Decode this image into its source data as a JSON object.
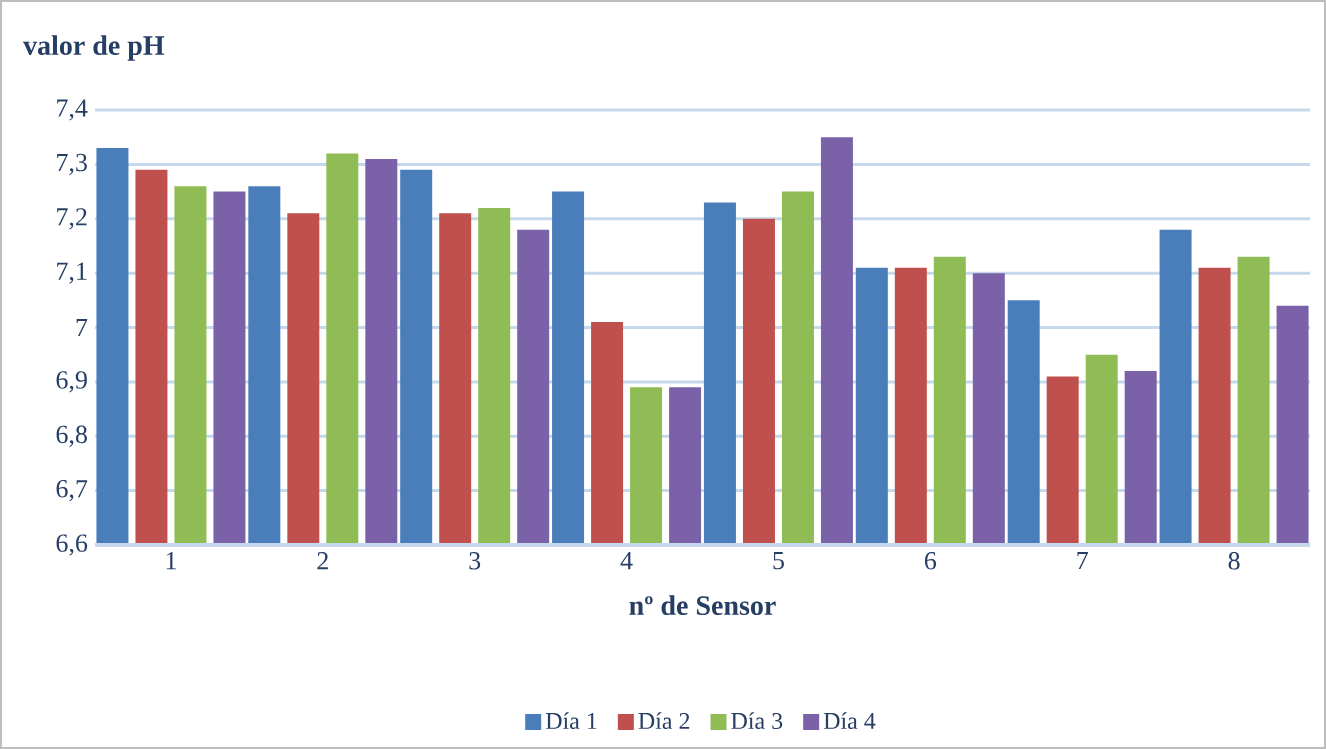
{
  "chart_data": {
    "type": "bar",
    "title": "valor de pH",
    "xlabel": "nº de Sensor",
    "categories": [
      "1",
      "2",
      "3",
      "4",
      "5",
      "6",
      "7",
      "8"
    ],
    "series": [
      {
        "name": "Día 1",
        "color": "#4a7ebb",
        "values": [
          7.33,
          7.26,
          7.29,
          7.25,
          7.23,
          7.11,
          7.05,
          7.18
        ]
      },
      {
        "name": "Día 2",
        "color": "#c0504d",
        "values": [
          7.29,
          7.21,
          7.21,
          7.01,
          7.2,
          7.11,
          6.91,
          7.11
        ]
      },
      {
        "name": "Día 3",
        "color": "#8fbc55",
        "values": [
          7.26,
          7.32,
          7.22,
          6.89,
          7.25,
          7.13,
          6.95,
          7.13
        ]
      },
      {
        "name": "Día 4",
        "color": "#7b62a8",
        "values": [
          7.25,
          7.31,
          7.18,
          6.89,
          7.35,
          7.1,
          6.92,
          7.04
        ]
      }
    ],
    "ylim": [
      6.6,
      7.4
    ],
    "yticks": [
      {
        "value": 6.6,
        "label": "6,6"
      },
      {
        "value": 6.7,
        "label": "6,7"
      },
      {
        "value": 6.8,
        "label": "6,8"
      },
      {
        "value": 6.9,
        "label": "6,9"
      },
      {
        "value": 7,
        "label": "7"
      },
      {
        "value": 7.1,
        "label": "7,1"
      },
      {
        "value": 7.2,
        "label": "7,2"
      },
      {
        "value": 7.3,
        "label": "7,3"
      },
      {
        "value": 7.4,
        "label": "7,4"
      }
    ],
    "grid": "y",
    "legend": "bottom"
  }
}
